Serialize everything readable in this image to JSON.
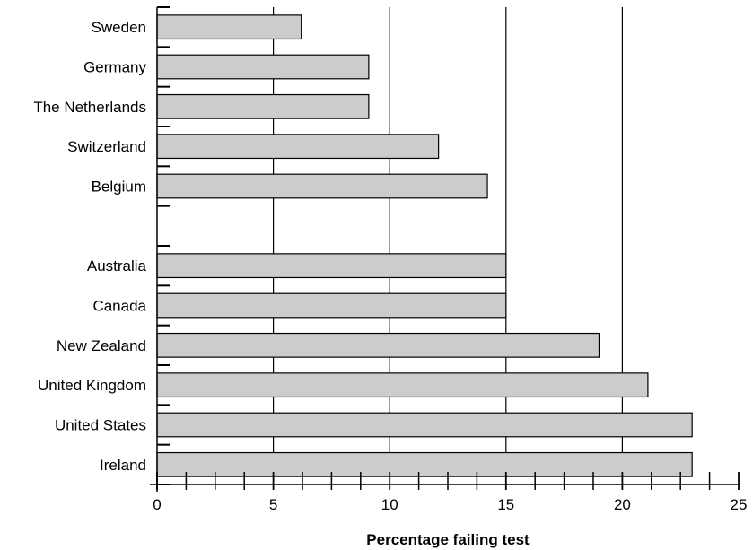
{
  "chart_data": {
    "type": "bar",
    "orientation": "horizontal",
    "categories": [
      "Sweden",
      "Germany",
      "The Netherlands",
      "Switzerland",
      "Belgium",
      "",
      "Australia",
      "Canada",
      "New Zealand",
      "United Kingdom",
      "United States",
      "Ireland"
    ],
    "values": [
      6.2,
      9.1,
      9.1,
      12.1,
      14.2,
      null,
      15.0,
      15.0,
      19.0,
      21.1,
      23.0,
      23.0
    ],
    "xlabel": "Percentage failing test",
    "ylabel": "",
    "xlim": [
      0,
      25
    ],
    "x_ticks": [
      "0",
      "5",
      "10",
      "15",
      "20",
      "25"
    ],
    "x_minor_step": 1.25,
    "gridlines_at": [
      5,
      10,
      15,
      20
    ],
    "grid": true,
    "bar_fill": "#cccccc",
    "bar_stroke": "#000000"
  }
}
